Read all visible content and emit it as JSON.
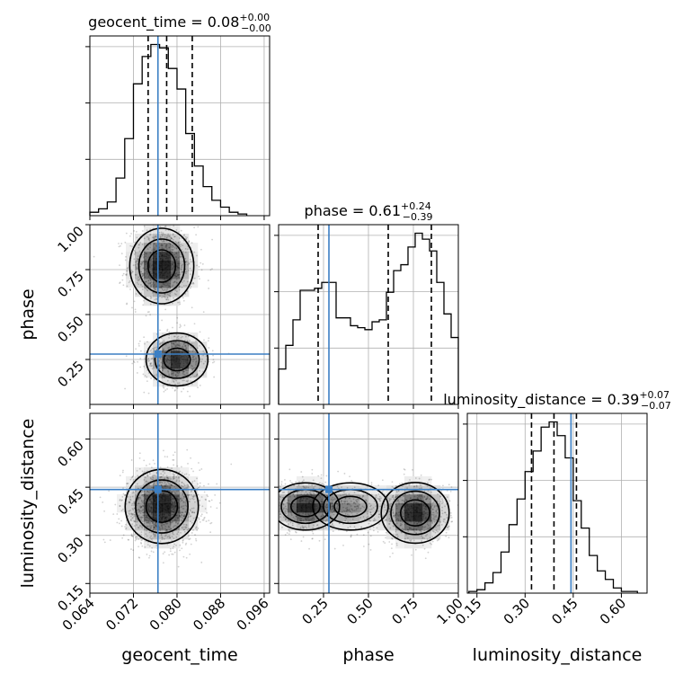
{
  "chart_data": {
    "type": "scatter",
    "kind": "corner plot",
    "parameters": [
      "geocent_time",
      "phase",
      "luminosity_distance"
    ],
    "axis_labels": {
      "geocent_time": "geocent_time",
      "phase": "phase",
      "luminosity_distance": "luminosity_distance"
    },
    "ranges": {
      "geocent_time": [
        0.064,
        0.097
      ],
      "phase": [
        0.0,
        1.0
      ],
      "luminosity_distance": [
        0.12,
        0.68
      ]
    },
    "ticks": {
      "geocent_time": [
        "0.064",
        "0.072",
        "0.080",
        "0.088",
        "0.096"
      ],
      "phase": [
        "0.25",
        "0.50",
        "0.75",
        "1.00"
      ],
      "luminosity_distance": [
        "0.15",
        "0.30",
        "0.45",
        "0.60"
      ]
    },
    "truths": {
      "geocent_time": 0.0765,
      "phase": 0.28,
      "luminosity_distance": 0.443
    },
    "titles": {
      "geocent_time": {
        "name": "geocent_time",
        "median": "0.08",
        "plus": "+0.00",
        "minus": "−0.00"
      },
      "phase": {
        "name": "phase",
        "median": "0.61",
        "plus": "+0.24",
        "minus": "−0.39"
      },
      "luminosity_distance": {
        "name": "luminosity_distance",
        "median": "0.39",
        "plus": "+0.07",
        "minus": "−0.07"
      }
    },
    "quantiles": {
      "geocent_time": [
        0.0747,
        0.0781,
        0.0828
      ],
      "phase": [
        0.22,
        0.61,
        0.85
      ],
      "luminosity_distance": [
        0.32,
        0.39,
        0.46
      ]
    },
    "histograms": {
      "geocent_time": {
        "edges": [
          0.064,
          0.0656,
          0.0672,
          0.0688,
          0.0704,
          0.072,
          0.0736,
          0.0752,
          0.0768,
          0.0784,
          0.08,
          0.0816,
          0.0832,
          0.0848,
          0.0864,
          0.088,
          0.0896,
          0.0912,
          0.0928
        ],
        "counts": [
          2,
          4,
          8,
          22,
          45,
          77,
          93,
          100,
          98,
          86,
          74,
          48,
          29,
          17,
          9,
          5,
          2,
          1
        ]
      },
      "phase": {
        "edges": [
          0.0,
          0.04,
          0.08,
          0.12,
          0.16,
          0.2,
          0.24,
          0.28,
          0.32,
          0.36,
          0.4,
          0.44,
          0.48,
          0.52,
          0.56,
          0.6,
          0.64,
          0.68,
          0.72,
          0.76,
          0.8,
          0.84,
          0.88,
          0.92,
          0.96,
          1.0
        ],
        "counts": [
          18,
          30,
          43,
          58,
          58,
          59,
          62,
          62,
          44,
          44,
          40,
          39,
          38,
          42,
          43,
          57,
          68,
          71,
          80,
          87,
          84,
          78,
          62,
          46,
          34
        ]
      },
      "luminosity_distance": {
        "edges": [
          0.125,
          0.15,
          0.175,
          0.2,
          0.225,
          0.25,
          0.275,
          0.3,
          0.325,
          0.35,
          0.375,
          0.4,
          0.425,
          0.45,
          0.475,
          0.5,
          0.525,
          0.55,
          0.575,
          0.6,
          0.625,
          0.65
        ],
        "counts": [
          1,
          2,
          6,
          12,
          24,
          40,
          55,
          71,
          83,
          97,
          100,
          92,
          79,
          54,
          38,
          22,
          13,
          8,
          3,
          1,
          1
        ]
      }
    },
    "scatter_2d": {
      "geocent_time_vs_phase": {
        "modes": [
          {
            "x": 0.0772,
            "y": 0.77,
            "sx": 0.0028,
            "sy": 0.1,
            "weight": 0.62
          },
          {
            "x": 0.08,
            "y": 0.25,
            "sx": 0.0027,
            "sy": 0.07,
            "weight": 0.38
          }
        ],
        "contour_levels": 3
      },
      "geocent_time_vs_luminosity_distance": {
        "modes": [
          {
            "x": 0.0772,
            "y": 0.39,
            "sx": 0.0032,
            "sy": 0.055,
            "weight": 1.0
          }
        ],
        "contour_levels": 3
      },
      "phase_vs_luminosity_distance": {
        "modes": [
          {
            "x": 0.15,
            "y": 0.39,
            "sx": 0.09,
            "sy": 0.035,
            "weight": 0.35
          },
          {
            "x": 0.4,
            "y": 0.39,
            "sx": 0.1,
            "sy": 0.035,
            "weight": 0.2
          },
          {
            "x": 0.76,
            "y": 0.37,
            "sx": 0.09,
            "sy": 0.045,
            "weight": 0.45
          }
        ],
        "contour_levels": 3
      }
    },
    "grid": true
  }
}
